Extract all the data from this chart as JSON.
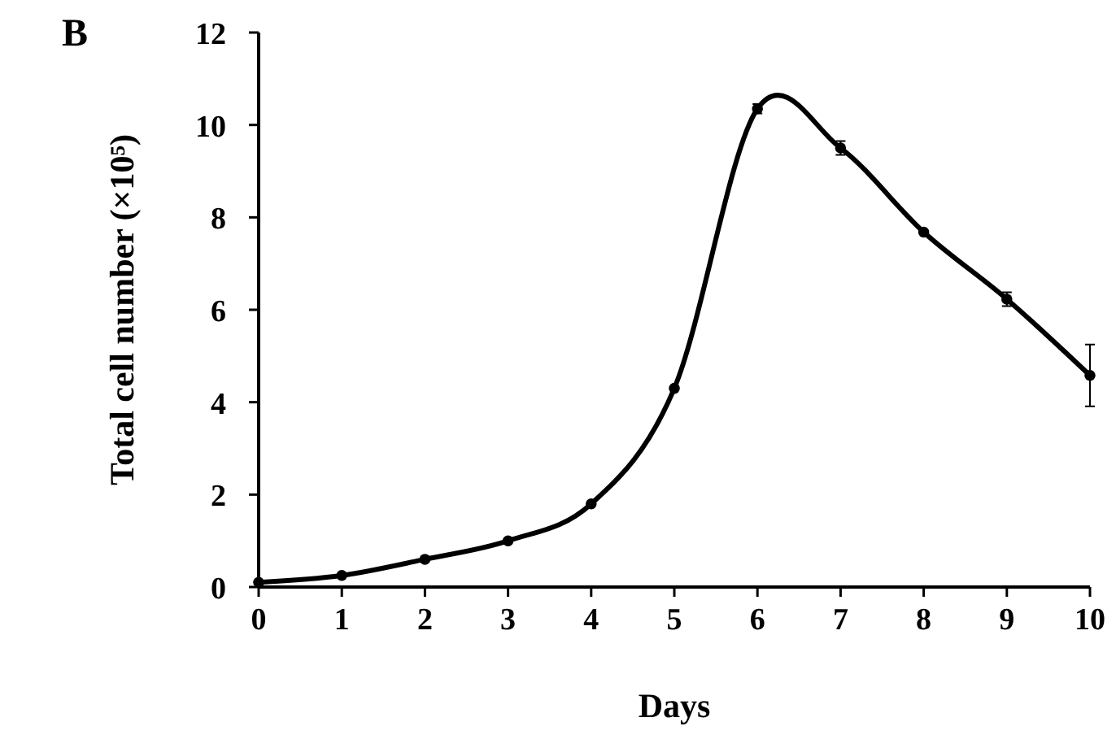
{
  "chart_data": {
    "type": "line",
    "xlabel": "Days",
    "ylabel": "Total cell number (×10⁵)",
    "annotations": [
      "B"
    ],
    "x": [
      0,
      1,
      2,
      3,
      4,
      5,
      6,
      7,
      8,
      9,
      10
    ],
    "series": [
      {
        "color": "#000000",
        "values": [
          0.1,
          0.25,
          0.6,
          1.0,
          1.8,
          4.3,
          10.35,
          9.5,
          7.68,
          6.23,
          4.58
        ],
        "errors": [
          null,
          null,
          null,
          null,
          null,
          null,
          0.1,
          0.15,
          null,
          0.15,
          0.67
        ]
      }
    ],
    "xlim": [
      0,
      10
    ],
    "xticks": [
      0,
      1,
      2,
      3,
      4,
      5,
      6,
      7,
      8,
      9,
      10
    ],
    "ylim": [
      0,
      12
    ],
    "yticks": [
      0,
      2,
      4,
      6,
      8,
      10,
      12
    ],
    "grid": false,
    "marker": "circle",
    "line_style": "solid"
  }
}
